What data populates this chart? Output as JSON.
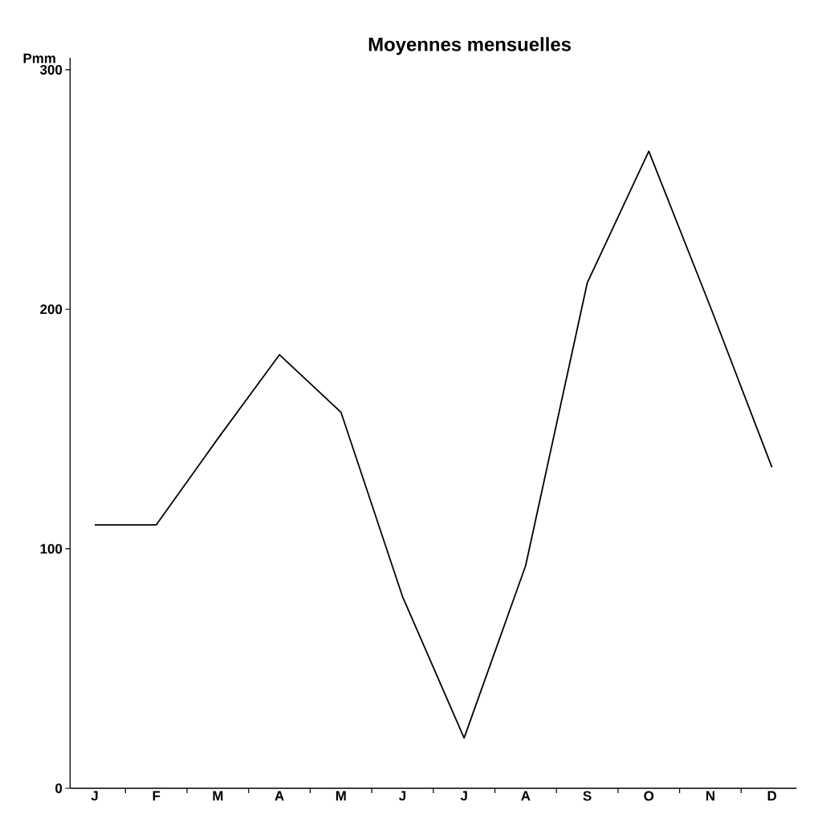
{
  "chart_data": {
    "type": "line",
    "title": "Moyennes mensuelles",
    "ylabel": "Pmm",
    "categories": [
      "J",
      "F",
      "M",
      "A",
      "M",
      "J",
      "J",
      "A",
      "S",
      "O",
      "N",
      "D"
    ],
    "values": [
      110,
      110,
      146,
      181,
      157,
      80,
      21,
      93,
      211,
      266,
      201,
      134
    ],
    "color": "#000000",
    "ylim": [
      0,
      305
    ],
    "yticks": [
      0,
      100,
      200,
      300
    ],
    "grid": false,
    "marker": "none",
    "line_style": "solid"
  }
}
